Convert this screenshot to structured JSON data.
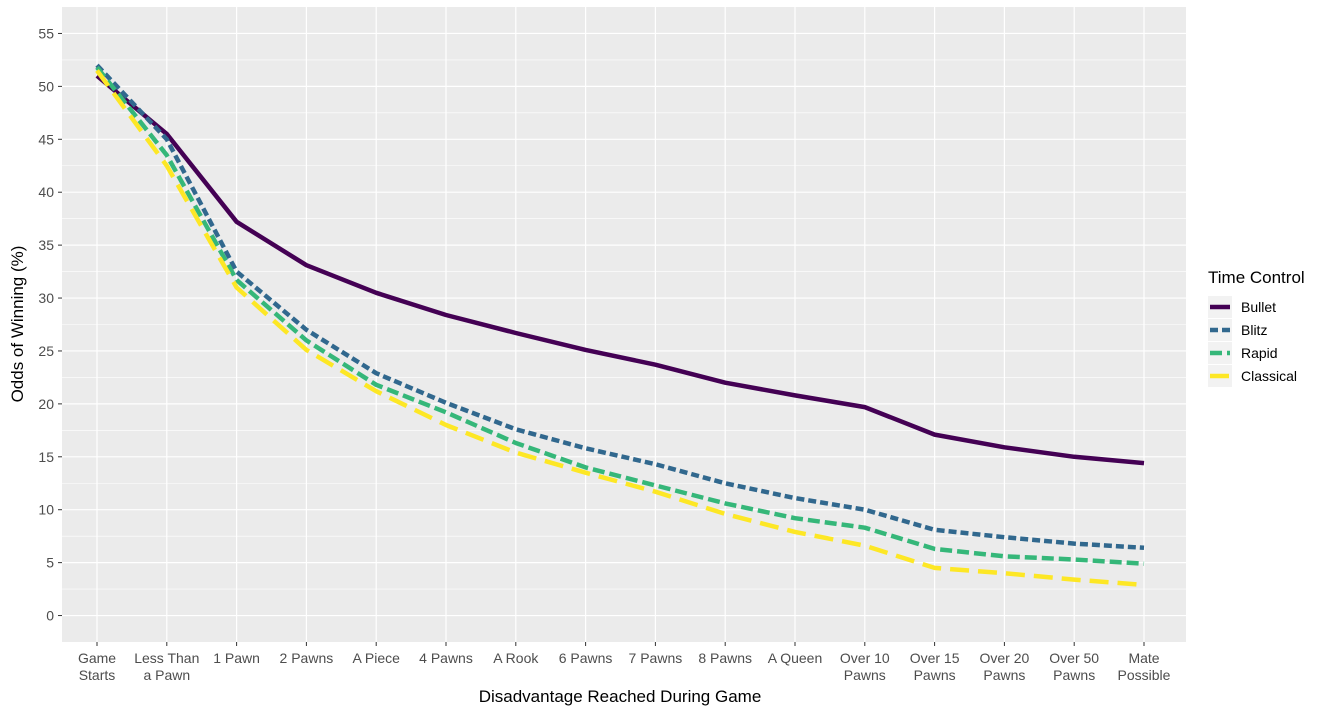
{
  "chart_data": {
    "type": "line",
    "xlabel": "Disadvantage Reached During Game",
    "ylabel": "Odds of Winning (%)",
    "ylim": [
      -2.5,
      57.5
    ],
    "yticks": [
      0,
      5,
      10,
      15,
      20,
      25,
      30,
      35,
      40,
      45,
      50,
      55
    ],
    "grid": true,
    "legend_title": "Time Control",
    "legend_position": "right",
    "categories": [
      [
        "Game",
        "Starts"
      ],
      [
        "Less Than",
        "a Pawn"
      ],
      [
        "1 Pawn"
      ],
      [
        "2 Pawns"
      ],
      [
        "A Piece"
      ],
      [
        "4 Pawns"
      ],
      [
        "A Rook"
      ],
      [
        "6 Pawns"
      ],
      [
        "7 Pawns"
      ],
      [
        "8 Pawns"
      ],
      [
        "A Queen"
      ],
      [
        "Over 10",
        "Pawns"
      ],
      [
        "Over 15",
        "Pawns"
      ],
      [
        "Over 20",
        "Pawns"
      ],
      [
        "Over 50",
        "Pawns"
      ],
      [
        "Mate",
        "Possible"
      ]
    ],
    "series": [
      {
        "name": "Bullet",
        "color": "#440154",
        "dash": "solid",
        "values": [
          51.0,
          45.5,
          37.2,
          33.1,
          30.5,
          28.4,
          26.7,
          25.1,
          23.7,
          22.0,
          20.8,
          19.7,
          17.1,
          15.9,
          15.0,
          14.4
        ]
      },
      {
        "name": "Blitz",
        "color": "#31688E",
        "dash": "short",
        "values": [
          52.0,
          45.0,
          32.5,
          27.0,
          22.9,
          20.1,
          17.6,
          15.8,
          14.3,
          12.5,
          11.1,
          10.0,
          8.1,
          7.4,
          6.8,
          6.4
        ]
      },
      {
        "name": "Rapid",
        "color": "#35B779",
        "dash": "medium",
        "values": [
          51.8,
          43.5,
          31.7,
          26.0,
          21.8,
          19.2,
          16.3,
          14.0,
          12.3,
          10.6,
          9.2,
          8.3,
          6.3,
          5.6,
          5.3,
          4.9
        ]
      },
      {
        "name": "Classical",
        "color": "#FDE725",
        "dash": "long",
        "values": [
          51.5,
          42.5,
          31.0,
          25.1,
          21.2,
          18.0,
          15.4,
          13.5,
          11.7,
          9.6,
          7.9,
          6.6,
          4.5,
          4.0,
          3.4,
          2.9
        ]
      }
    ]
  }
}
